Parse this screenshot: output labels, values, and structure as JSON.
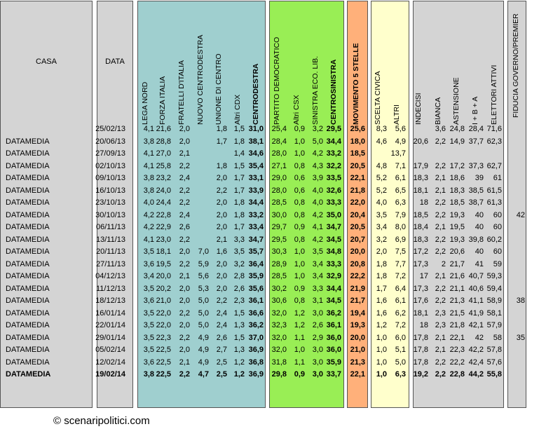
{
  "headers": {
    "casa": "CASA",
    "data": "DATA",
    "vertical": [
      "LEGA NORD",
      "FORZA ITALIA",
      "FRATELLI D'ITALIA",
      "NUOVO  CENTRODESTRA",
      "UNIONE DI CENTRO",
      "Altri CDX",
      "CENTRODESTRA",
      "PARTITO DEMOCRATICO",
      "Altri CSX",
      "SINISTRA ECO. LIB.",
      "CENTROSINISTRA",
      "MOVIMENTO 5 STELLE",
      "SCELTA CIVICA",
      "ALTRI",
      "INDECISI",
      "BIANCA",
      "ASTENSIONE",
      "I + B + A",
      "ELETTORI ATTIVI",
      "FIDUCIA GOVERNO/PREMIER"
    ]
  },
  "band_colors": {
    "casa": "#d4d4d4",
    "data": "#d4d4d4",
    "centrodestra": "#9fcfcf",
    "centrosinistra": "#99ee55",
    "m5s": "#ffb07a",
    "civica": "#ffffcc",
    "indecisi": "#d4d4d4",
    "fiducia": "#d4d4d4"
  },
  "rows": [
    [
      "",
      "25/02/13",
      "4,1",
      "21,6",
      "2,0",
      "",
      "1,8",
      "1,5",
      "31,0",
      "25,4",
      "0,9",
      "3,2",
      "29,5",
      "25,6",
      "8,3",
      "5,6",
      "",
      "3,6",
      "24,8",
      "28,4",
      "71,6",
      ""
    ],
    [
      "DATAMEDIA",
      "20/06/13",
      "3,8",
      "28,8",
      "2,0",
      "",
      "1,7",
      "1,8",
      "38,1",
      "28,4",
      "1,0",
      "5,0",
      "34,4",
      "18,0",
      "4,6",
      "4,9",
      "20,6",
      "2,2",
      "14,9",
      "37,7",
      "62,3",
      ""
    ],
    [
      "DATAMEDIA",
      "27/09/13",
      "4,1",
      "27,0",
      "2,1",
      "",
      "",
      "1,4",
      "34,6",
      "28,0",
      "1,0",
      "4,2",
      "33,2",
      "18,5",
      "",
      "13,7",
      "",
      "",
      "",
      "",
      "",
      ""
    ],
    [
      "DATAMEDIA",
      "02/10/13",
      "4,1",
      "25,8",
      "2,2",
      "",
      "1,8",
      "1,5",
      "35,4",
      "27,1",
      "0,8",
      "4,3",
      "32,2",
      "20,5",
      "4,8",
      "7,1",
      "17,9",
      "2,2",
      "17,2",
      "37,3",
      "62,7",
      ""
    ],
    [
      "DATAMEDIA",
      "09/10/13",
      "3,8",
      "23,2",
      "2,4",
      "",
      "2,0",
      "1,7",
      "33,1",
      "29,0",
      "0,6",
      "3,9",
      "33,5",
      "22,1",
      "5,2",
      "6,1",
      "18,3",
      "2,1",
      "18,6",
      "39",
      "61",
      ""
    ],
    [
      "DATAMEDIA",
      "16/10/13",
      "3,8",
      "24,0",
      "2,2",
      "",
      "2,2",
      "1,7",
      "33,9",
      "28,0",
      "0,6",
      "4,0",
      "32,6",
      "21,8",
      "5,2",
      "6,5",
      "18,1",
      "2,1",
      "18,3",
      "38,5",
      "61,5",
      ""
    ],
    [
      "DATAMEDIA",
      "23/10/13",
      "4,0",
      "24,4",
      "2,2",
      "",
      "2,0",
      "1,8",
      "34,4",
      "28,5",
      "0,8",
      "4,0",
      "33,3",
      "22,0",
      "4,0",
      "6,3",
      "18",
      "2,2",
      "18,5",
      "38,7",
      "61,3",
      ""
    ],
    [
      "DATAMEDIA",
      "30/10/13",
      "4,2",
      "22,8",
      "2,4",
      "",
      "2,0",
      "1,8",
      "33,2",
      "30,0",
      "0,8",
      "4,2",
      "35,0",
      "20,4",
      "3,5",
      "7,9",
      "18,5",
      "2,2",
      "19,3",
      "40",
      "60",
      "42"
    ],
    [
      "DATAMEDIA",
      "06/11/13",
      "4,2",
      "22,9",
      "2,6",
      "",
      "2,0",
      "1,7",
      "33,4",
      "29,7",
      "0,9",
      "4,1",
      "34,7",
      "20,5",
      "3,4",
      "8,0",
      "18,4",
      "2,1",
      "19,5",
      "40",
      "60",
      ""
    ],
    [
      "DATAMEDIA",
      "13/11/13",
      "4,1",
      "23,0",
      "2,2",
      "",
      "2,1",
      "3,3",
      "34,7",
      "29,5",
      "0,8",
      "4,2",
      "34,5",
      "20,7",
      "3,2",
      "6,9",
      "18,3",
      "2,2",
      "19,3",
      "39,8",
      "60,2",
      ""
    ],
    [
      "DATAMEDIA",
      "20/11/13",
      "3,5",
      "18,1",
      "2,0",
      "7,0",
      "1,6",
      "3,5",
      "35,7",
      "30,3",
      "1,0",
      "3,5",
      "34,8",
      "20,0",
      "2,0",
      "7,5",
      "17,2",
      "2,2",
      "20,6",
      "40",
      "60",
      ""
    ],
    [
      "DATAMEDIA",
      "27/11/13",
      "3,6",
      "19,5",
      "2,2",
      "5,9",
      "2,0",
      "3,2",
      "36,4",
      "28,9",
      "1,0",
      "3,4",
      "33,3",
      "20,8",
      "1,8",
      "7,7",
      "17,3",
      "2",
      "21,7",
      "41",
      "59",
      ""
    ],
    [
      "DATAMEDIA",
      "04/12/13",
      "3,4",
      "20,0",
      "2,1",
      "5,6",
      "2,0",
      "2,8",
      "35,9",
      "28,5",
      "1,0",
      "3,4",
      "32,9",
      "22,2",
      "1,8",
      "7,2",
      "17",
      "2,1",
      "21,6",
      "40,7",
      "59,3",
      ""
    ],
    [
      "DATAMEDIA",
      "11/12/13",
      "3,5",
      "20,2",
      "2,0",
      "5,3",
      "2,0",
      "2,6",
      "35,6",
      "30,2",
      "0,9",
      "3,3",
      "34,4",
      "21,9",
      "1,7",
      "6,4",
      "17,3",
      "2,2",
      "21,1",
      "40,6",
      "59,4",
      ""
    ],
    [
      "DATAMEDIA",
      "18/12/13",
      "3,6",
      "21,0",
      "2,0",
      "5,0",
      "2,2",
      "2,3",
      "36,1",
      "30,6",
      "0,8",
      "3,1",
      "34,5",
      "21,7",
      "1,6",
      "6,1",
      "17,6",
      "2,2",
      "21,3",
      "41,1",
      "58,9",
      "38"
    ],
    [
      "DATAMEDIA",
      "16/01/14",
      "3,5",
      "22,0",
      "2,2",
      "5,0",
      "2,4",
      "1,5",
      "36,6",
      "32,0",
      "1,2",
      "3,0",
      "36,2",
      "19,4",
      "1,6",
      "6,2",
      "18,1",
      "2,3",
      "21,5",
      "41,9",
      "58,1",
      ""
    ],
    [
      "DATAMEDIA",
      "22/01/14",
      "3,5",
      "22,0",
      "2,0",
      "5,0",
      "2,4",
      "1,3",
      "36,2",
      "32,3",
      "1,2",
      "2,6",
      "36,1",
      "19,3",
      "1,2",
      "7,2",
      "18",
      "2,3",
      "21,8",
      "42,1",
      "57,9",
      ""
    ],
    [
      "DATAMEDIA",
      "29/01/14",
      "3,5",
      "22,3",
      "2,2",
      "4,9",
      "2,6",
      "1,5",
      "37,0",
      "32,0",
      "1,1",
      "2,9",
      "36,0",
      "20,0",
      "1,0",
      "6,0",
      "17,8",
      "2,1",
      "22,1",
      "42",
      "58",
      "35"
    ],
    [
      "DATAMEDIA",
      "05/02/14",
      "3,5",
      "22,5",
      "2,0",
      "4,9",
      "2,7",
      "1,3",
      "36,9",
      "32,0",
      "1,0",
      "3,0",
      "36,0",
      "21,0",
      "1,0",
      "5,1",
      "17,8",
      "2,1",
      "22,3",
      "42,2",
      "57,8",
      ""
    ],
    [
      "DATAMEDIA",
      "12/02/14",
      "3,6",
      "22,5",
      "2,1",
      "4,9",
      "2,5",
      "1,2",
      "36,8",
      "31,8",
      "1,1",
      "3,0",
      "35,9",
      "21,3",
      "1,0",
      "5,0",
      "17,8",
      "2,2",
      "22,2",
      "42,4",
      "57,6",
      ""
    ],
    [
      "DATAMEDIA",
      "19/02/14",
      "3,8",
      "22,5",
      "2,2",
      "4,7",
      "2,5",
      "1,2",
      "36,9",
      "29,8",
      "0,9",
      "3,0",
      "33,7",
      "22,1",
      "1,0",
      "6,3",
      "19,2",
      "2,2",
      "22,8",
      "44,2",
      "55,8",
      ""
    ]
  ],
  "footer": "© scenaripolitici.com"
}
